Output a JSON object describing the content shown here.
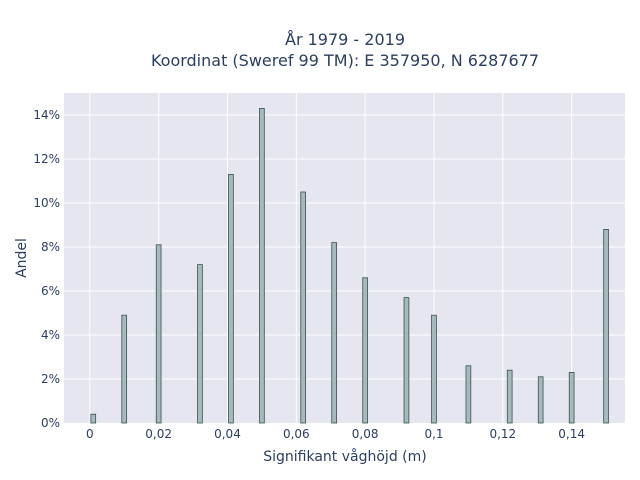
{
  "chart_data": {
    "type": "bar",
    "title_line1": "År 1979 - 2019",
    "title_line2": "Koordinat (Sweref 99 TM): E 357950, N 6287677",
    "xlabel": "Signifikant våghöjd (m)",
    "ylabel": "Andel",
    "x_tick_values": [
      0,
      0.02,
      0.04,
      0.06,
      0.08,
      0.1,
      0.12,
      0.14
    ],
    "x_tick_labels": [
      "0",
      "0,02",
      "0,04",
      "0,06",
      "0,08",
      "0,1",
      "0,12",
      "0,14"
    ],
    "y_tick_values": [
      0,
      2,
      4,
      6,
      8,
      10,
      12,
      14
    ],
    "y_tick_labels": [
      "0%",
      "2%",
      "4%",
      "6%",
      "8%",
      "10%",
      "12%",
      "14%"
    ],
    "xlim": [
      -0.0075,
      0.1555
    ],
    "ylim": [
      0,
      15
    ],
    "grid": true,
    "bar_color": "#a3bbbc",
    "bar_edge_color": "#3d4f4f",
    "plot_bg": "#e5e6f0",
    "x": [
      0.001,
      0.01,
      0.02,
      0.032,
      0.041,
      0.05,
      0.062,
      0.071,
      0.08,
      0.092,
      0.1,
      0.11,
      0.122,
      0.131,
      0.14,
      0.15
    ],
    "values": [
      0.4,
      4.9,
      8.1,
      7.2,
      11.3,
      14.3,
      10.5,
      8.2,
      6.6,
      5.7,
      4.9,
      2.6,
      2.4,
      2.1,
      2.3,
      8.8
    ]
  }
}
